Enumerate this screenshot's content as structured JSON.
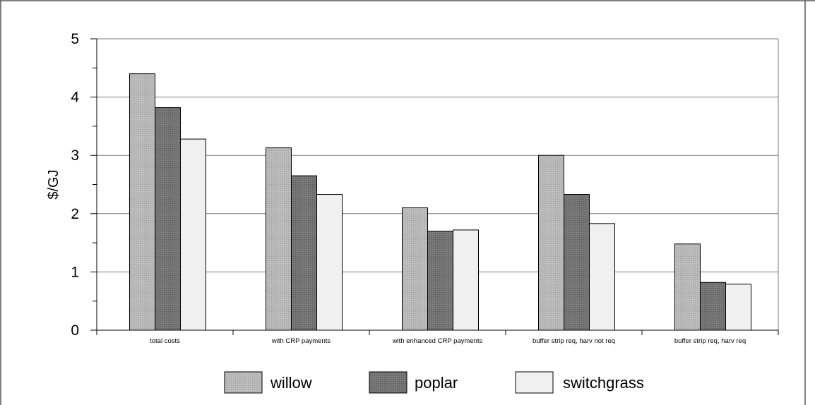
{
  "chart_data": {
    "type": "bar",
    "title": "",
    "xlabel": "",
    "ylabel": "$/GJ",
    "ylim": [
      0,
      5
    ],
    "yticks": [
      "0",
      "1",
      "2",
      "3",
      "4",
      "5"
    ],
    "grid": true,
    "legend_position": "bottom",
    "categories": [
      "total costs",
      "with CRP payments",
      "with enhanced CRP payments",
      "buffer strip req, harv not req",
      "buffer strip req, harv req"
    ],
    "series": [
      {
        "name": "willow",
        "color": "#b4b4b4",
        "values": [
          4.4,
          3.13,
          2.1,
          3.0,
          1.48
        ]
      },
      {
        "name": "poplar",
        "color": "#6e6e6e",
        "values": [
          3.82,
          2.65,
          1.7,
          2.33,
          0.82
        ]
      },
      {
        "name": "switchgrass",
        "color": "#f0f0f0",
        "values": [
          3.28,
          2.33,
          1.72,
          1.83,
          0.79
        ]
      }
    ]
  }
}
